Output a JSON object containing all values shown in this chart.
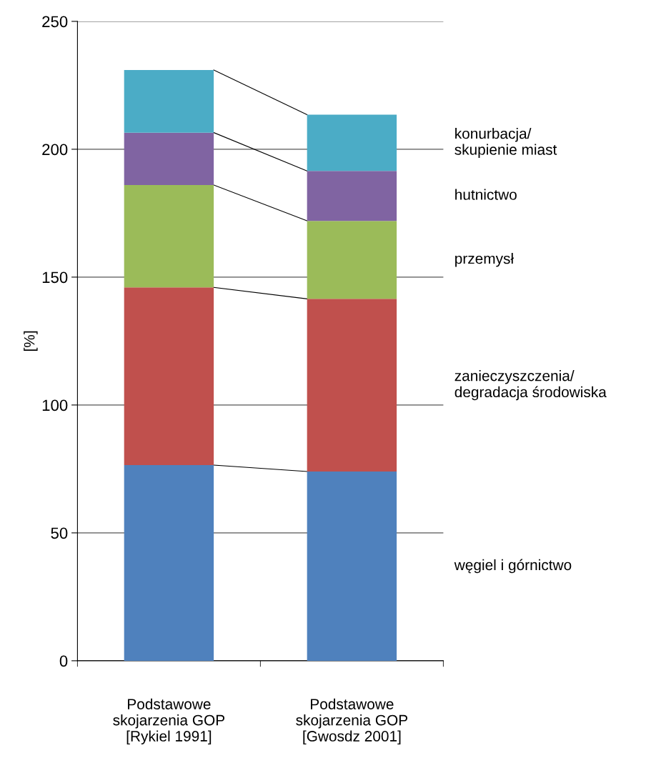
{
  "chart_data": {
    "type": "bar",
    "stacked": true,
    "ylabel": "[%]",
    "categories": [
      "Podstawowe\nskojarzenia GOP\n[Rykiel 1991]",
      "Podstawowe\nskojarzenia GOP\n[Gwosdz 2001]"
    ],
    "series": [
      {
        "name": "węgiel i górnictwo",
        "color": "#4f81bd",
        "values": [
          76.5,
          74
        ]
      },
      {
        "name": "zanieczyszczenia/\ndegradacja środowiska",
        "color": "#c0504d",
        "values": [
          69.5,
          67.5
        ]
      },
      {
        "name": "przemysł",
        "color": "#9bbb59",
        "values": [
          40,
          30.5
        ]
      },
      {
        "name": "hutnictwo",
        "color": "#8064a2",
        "values": [
          20.5,
          19.5
        ]
      },
      {
        "name": "konurbacja/\nskupienie miast",
        "color": "#4bacc6",
        "values": [
          24.5,
          22
        ]
      }
    ],
    "ylim": [
      0,
      250
    ],
    "yticks": [
      0,
      50,
      100,
      150,
      200,
      250
    ],
    "grid": "y"
  }
}
